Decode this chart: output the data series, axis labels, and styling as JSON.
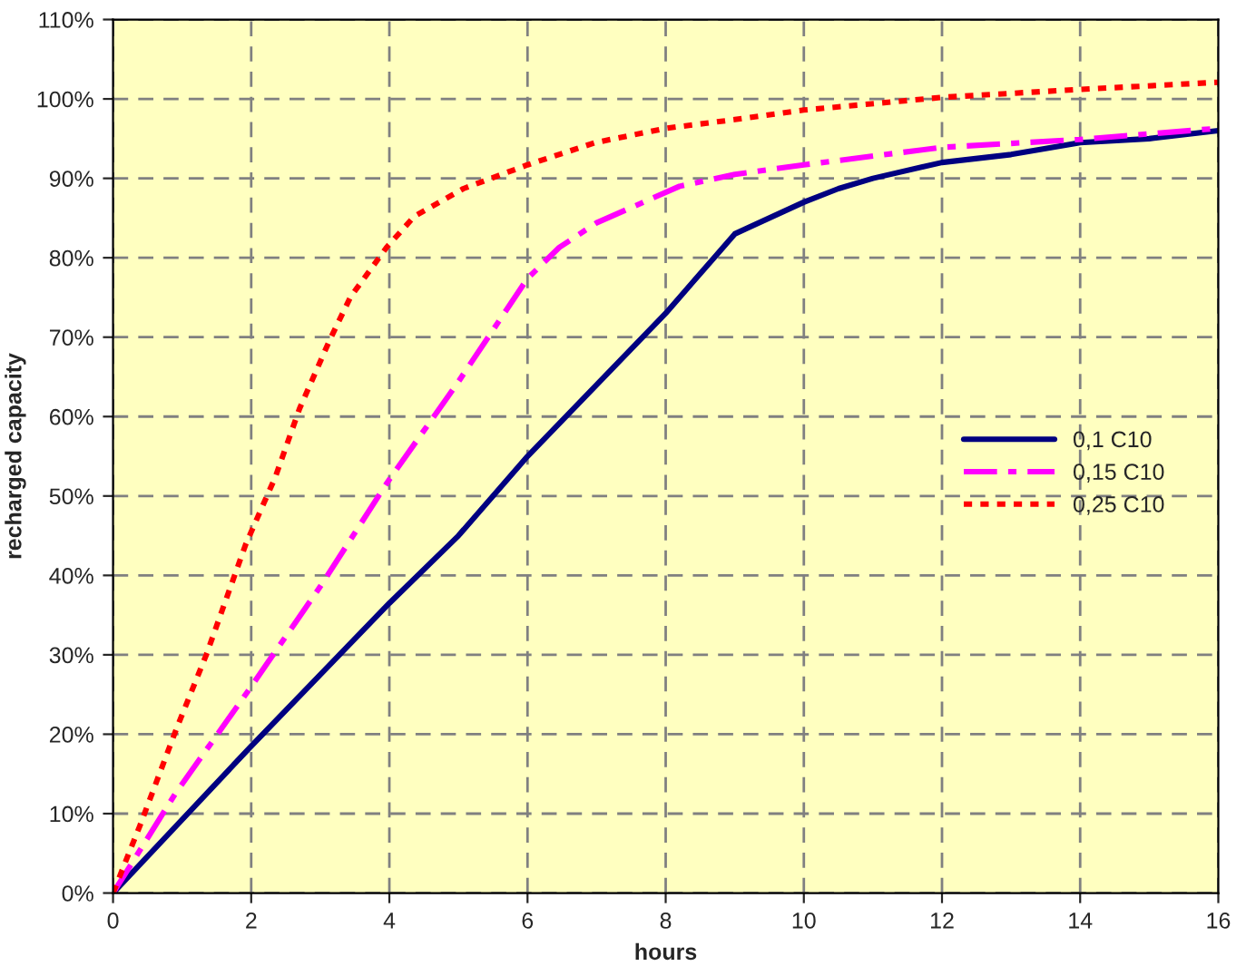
{
  "chart_data": {
    "type": "line",
    "xlabel": "hours",
    "ylabel": "recharged capacity",
    "xlim": [
      0,
      16
    ],
    "xticks": [
      0,
      2,
      4,
      6,
      8,
      10,
      12,
      14,
      16
    ],
    "ylim": [
      0,
      110
    ],
    "yticks": [
      {
        "value": 0,
        "label": "0%"
      },
      {
        "value": 10,
        "label": "10%"
      },
      {
        "value": 20,
        "label": "20%"
      },
      {
        "value": 30,
        "label": "30%"
      },
      {
        "value": 40,
        "label": "40%"
      },
      {
        "value": 50,
        "label": "50%"
      },
      {
        "value": 60,
        "label": "60%"
      },
      {
        "value": 70,
        "label": "70%"
      },
      {
        "value": 80,
        "label": "80%"
      },
      {
        "value": 90,
        "label": "90%"
      },
      {
        "value": 100,
        "label": "100%"
      },
      {
        "value": 110,
        "label": "110%"
      }
    ],
    "grid": true,
    "legend": "right",
    "marker": "none",
    "series": [
      {
        "name": "0,1 C10",
        "color": "#000080",
        "line_style": "solid",
        "x": [
          0,
          2,
          4,
          5,
          6,
          8,
          8.7,
          9,
          10,
          10.5,
          11,
          12,
          13,
          14,
          15,
          16
        ],
        "values": [
          0,
          18.5,
          36.5,
          45,
          55,
          73,
          80,
          83,
          87,
          88.7,
          90,
          92,
          93,
          94.5,
          95,
          96
        ]
      },
      {
        "name": "0,15 C10",
        "color": "#ff00ff",
        "line_style": "dashdot",
        "x": [
          0,
          0.34,
          0.9,
          1.96,
          3.0,
          3.97,
          5.0,
          6.0,
          6.46,
          7.0,
          8.2,
          9,
          10,
          12,
          14,
          16
        ],
        "values": [
          0,
          4.7,
          12.5,
          25.5,
          38.6,
          51.7,
          64.4,
          77.4,
          81.3,
          84.4,
          89,
          90.5,
          91.7,
          93.9,
          94.9,
          96.3
        ]
      },
      {
        "name": "0,25 C10",
        "color": "#ff0000",
        "line_style": "dotted",
        "x": [
          0,
          0.39,
          0.91,
          1.35,
          1.92,
          2.35,
          2.7,
          3.14,
          3.44,
          3.96,
          4.36,
          5.07,
          6,
          6.98,
          8,
          9,
          10,
          12,
          14,
          16
        ],
        "values": [
          0,
          8.5,
          20.5,
          30,
          43.9,
          52.4,
          61,
          69.7,
          75.1,
          81.3,
          85.2,
          88.7,
          91.7,
          94.5,
          96.3,
          97.4,
          98.6,
          100.2,
          101.2,
          102.1
        ]
      }
    ]
  }
}
